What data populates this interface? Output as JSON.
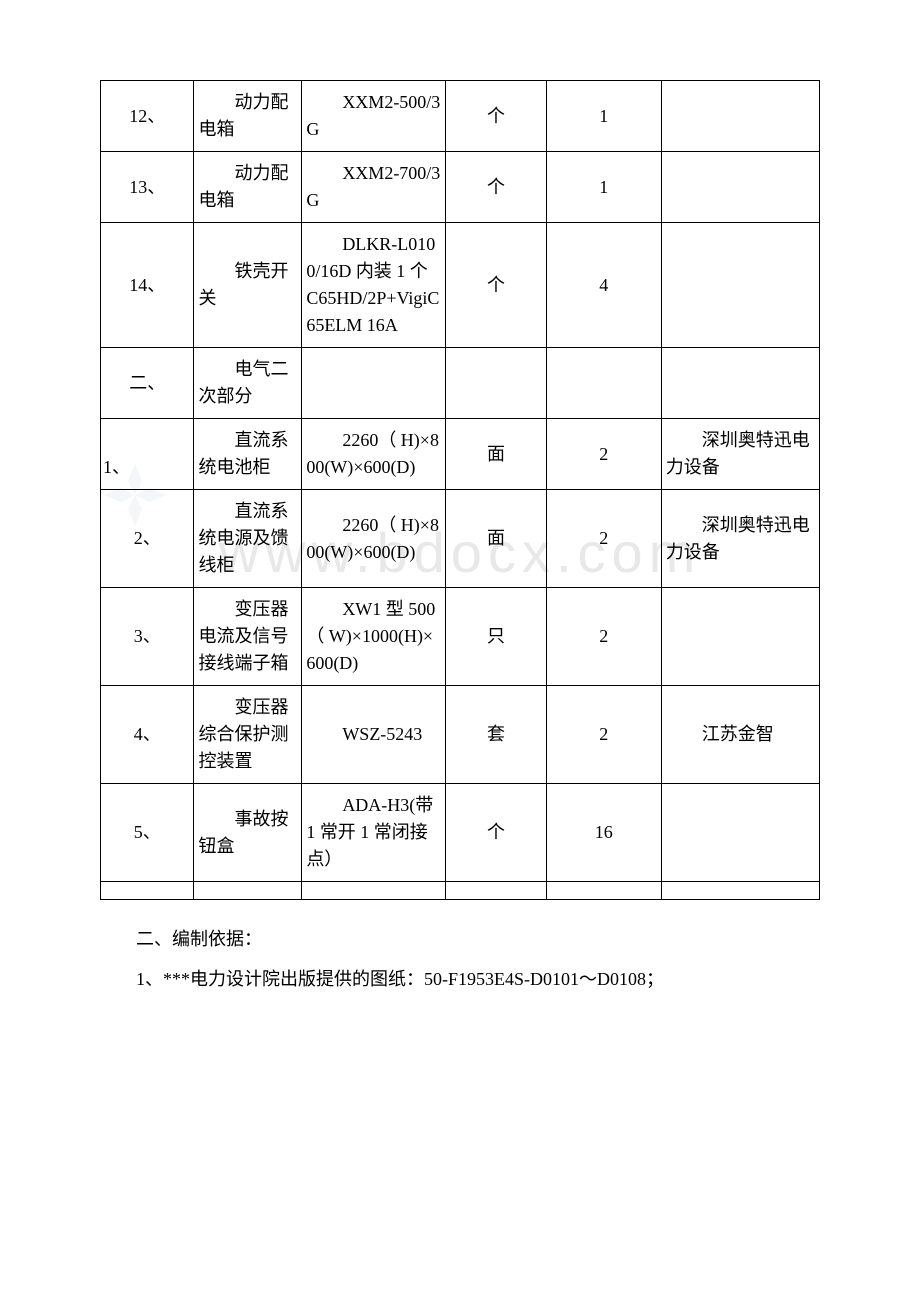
{
  "watermark_text": "www.bdocx.com",
  "table": {
    "columns": [
      {
        "key": "seq",
        "width": "13%"
      },
      {
        "key": "name",
        "width": "15%"
      },
      {
        "key": "spec",
        "width": "20%"
      },
      {
        "key": "unit",
        "width": "14%"
      },
      {
        "key": "qty",
        "width": "16%"
      },
      {
        "key": "note",
        "width": "22%"
      }
    ],
    "rows": [
      {
        "seq": "12、",
        "name": "动力配电箱",
        "spec": "XXM2-500/3G",
        "unit": "个",
        "qty": "1",
        "note": ""
      },
      {
        "seq": "13、",
        "name": "动力配电箱",
        "spec": "XXM2-700/3G",
        "unit": "个",
        "qty": "1",
        "note": ""
      },
      {
        "seq": "14、",
        "name": "铁壳开关",
        "spec": "DLKR-L0100/16D 内装 1 个 C65HD/2P+VigiC65ELM 16A",
        "unit": "个",
        "qty": "4",
        "note": ""
      },
      {
        "seq": "二、",
        "name": "电气二次部分",
        "spec": "",
        "unit": "",
        "qty": "",
        "note": ""
      },
      {
        "seq": "1、",
        "seq_hanging": true,
        "name": "直流系统电池柜",
        "spec": "2260（ H)×800(W)×600(D)",
        "unit": "面",
        "qty": "2",
        "note": "深圳奥特迅电力设备"
      },
      {
        "seq": "2、",
        "name": "直流系统电源及馈线柜",
        "spec": "2260（ H)×800(W)×600(D)",
        "unit": "面",
        "qty": "2",
        "note": "深圳奥特迅电力设备"
      },
      {
        "seq": "3、",
        "name": "变压器电流及信号接线端子箱",
        "spec": "XW1 型 500（ W)×1000(H)×600(D)",
        "unit": "只",
        "qty": "2",
        "note": ""
      },
      {
        "seq": "4、",
        "name": "变压器综合保护测控装置",
        "spec": "WSZ-5243",
        "unit": "套",
        "qty": "2",
        "note": "江苏金智"
      },
      {
        "seq": "5、",
        "name": "事故按钮盒",
        "spec": "ADA-H3(带 1 常开 1 常闭接点）",
        "unit": "个",
        "qty": "16",
        "note": ""
      },
      {
        "seq": "",
        "name": "",
        "spec": "",
        "unit": "",
        "qty": "",
        "note": "",
        "empty": true
      }
    ]
  },
  "body_lines": [
    "二、编制依据：",
    "1、***电力设计院出版提供的图纸：50-F1953E4S-D0101～D0108；"
  ],
  "colors": {
    "border": "#000000",
    "text": "#000000",
    "background": "#ffffff",
    "watermark": "#e8e8e8"
  }
}
